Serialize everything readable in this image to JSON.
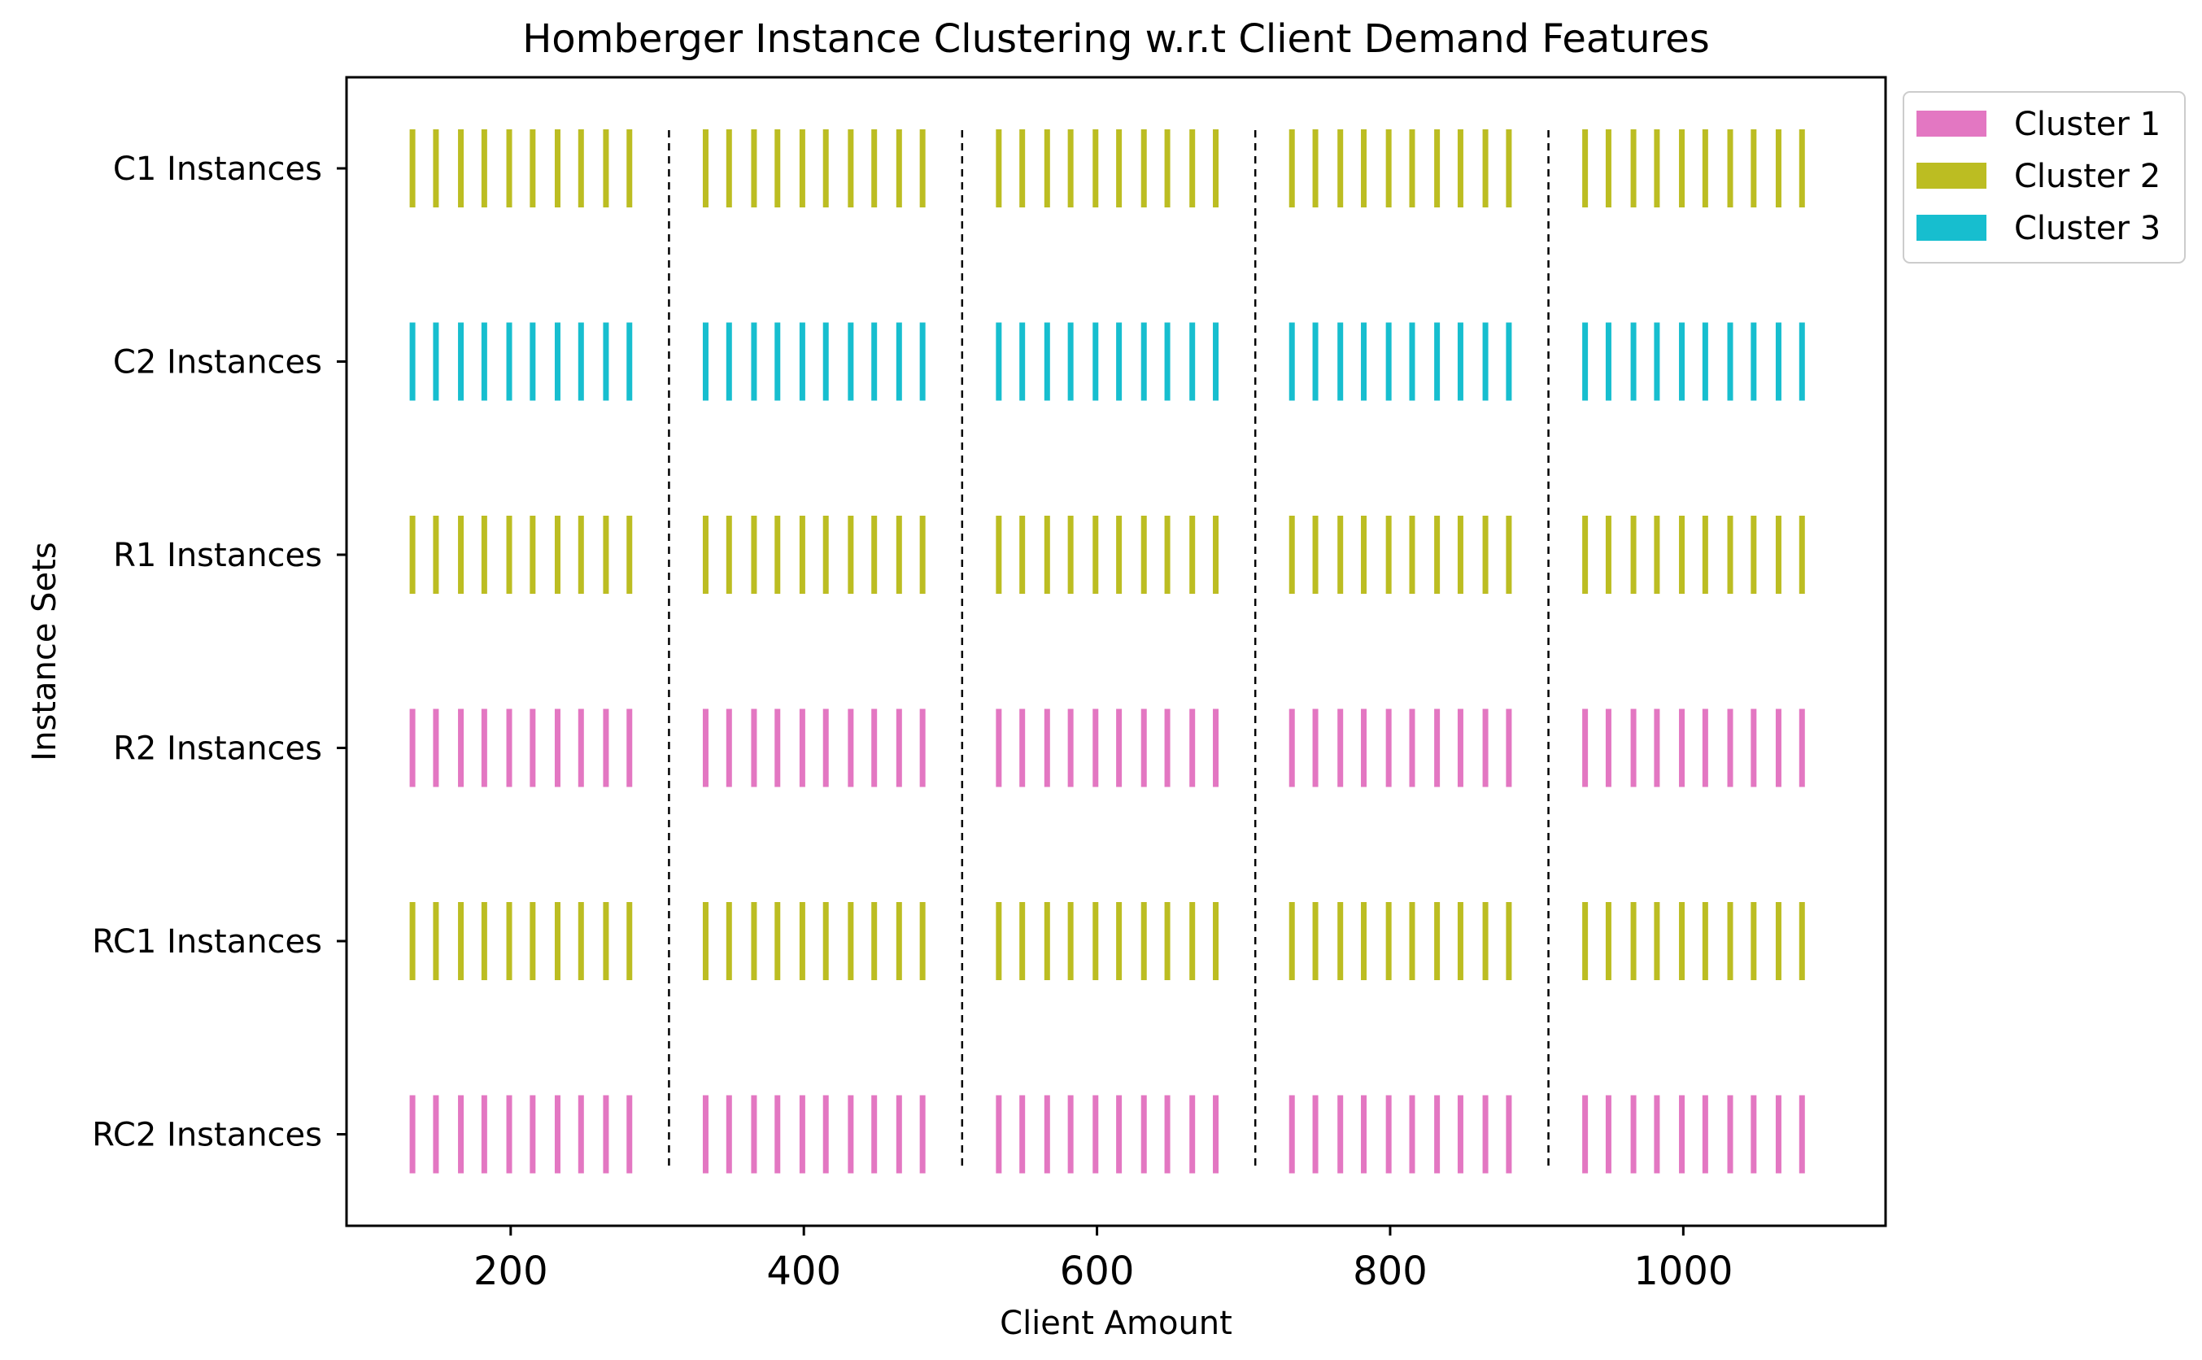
{
  "chart_data": {
    "type": "event-plot",
    "title": "Homberger Instance Clustering w.r.t Client Demand Features",
    "xlabel": "Client Amount",
    "ylabel": "Instance Sets",
    "xlim": [
      88,
      1138
    ],
    "xticks": [
      200,
      400,
      600,
      800,
      1000
    ],
    "xtick_labels": [
      "200",
      "400",
      "600",
      "800",
      "1000"
    ],
    "categories": [
      "C1 Instances",
      "C2 Instances",
      "R1 Instances",
      "R2 Instances",
      "RC1 Instances",
      "RC2 Instances"
    ],
    "group_dividers": [
      308,
      508,
      708,
      908
    ],
    "groups": [
      {
        "x": [
          133,
          149,
          166,
          182,
          199,
          215,
          232,
          248,
          265,
          281
        ]
      },
      {
        "x": [
          333,
          349,
          366,
          382,
          399,
          415,
          432,
          448,
          465,
          481
        ]
      },
      {
        "x": [
          533,
          549,
          566,
          582,
          599,
          615,
          632,
          648,
          665,
          681
        ]
      },
      {
        "x": [
          733,
          749,
          766,
          782,
          799,
          815,
          832,
          848,
          865,
          881
        ]
      },
      {
        "x": [
          933,
          949,
          966,
          982,
          999,
          1015,
          1032,
          1048,
          1065,
          1081
        ]
      }
    ],
    "row_cluster": [
      "Cluster 2",
      "Cluster 3",
      "Cluster 2",
      "Cluster 1",
      "Cluster 2",
      "Cluster 1"
    ],
    "legend": {
      "position": "outside-top-right",
      "entries": [
        {
          "label": "Cluster 1",
          "color": "#e377c2"
        },
        {
          "label": "Cluster 2",
          "color": "#bcbd22"
        },
        {
          "label": "Cluster 3",
          "color": "#17becf"
        }
      ]
    },
    "grid": false
  }
}
